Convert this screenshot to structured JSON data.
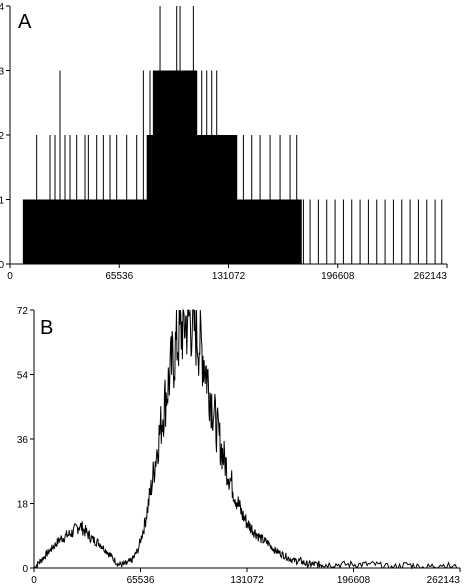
{
  "chart_data": [
    {
      "panel": "A",
      "type": "bar",
      "xlim": [
        0,
        262143
      ],
      "ylim": [
        0,
        4
      ],
      "x_ticks": [
        "0",
        "65536",
        "131072",
        "196608",
        "262143"
      ],
      "y_ticks": [
        "0",
        "1",
        "2",
        "3",
        "4"
      ],
      "series": [
        {
          "x": [
            8000,
            16000,
            24000,
            27000,
            30000,
            33000,
            36000,
            40000,
            45000,
            47000,
            52000,
            56000,
            60000,
            64000,
            70000,
            76000,
            80000,
            84000,
            86000,
            88000,
            90000,
            92000,
            94000,
            96000,
            98000,
            100000,
            101000,
            102000,
            104000,
            106000,
            108000,
            110000,
            112000,
            115000,
            118000,
            121000,
            124000,
            127000,
            130000,
            133000,
            136000,
            140000,
            145000,
            150000,
            156000,
            162000,
            168000,
            172000,
            176000,
            180000,
            185000,
            190000,
            195000,
            200000,
            205000,
            210000,
            215000,
            220000,
            225000,
            230000,
            235000,
            240000,
            245000,
            250000,
            255000,
            259000
          ],
          "values": [
            1,
            2,
            2,
            2,
            3,
            2,
            2,
            2,
            2,
            2,
            2,
            2,
            2,
            2,
            2,
            2,
            3,
            3,
            3,
            3,
            4,
            3,
            3,
            3,
            3,
            4,
            3,
            4,
            3,
            3,
            3,
            4,
            3,
            3,
            3,
            3,
            3,
            2,
            2,
            2,
            2,
            2,
            2,
            2,
            2,
            2,
            2,
            2,
            1,
            1,
            1,
            1,
            1,
            1,
            1,
            1,
            1,
            1,
            1,
            1,
            1,
            1,
            1,
            1,
            1,
            1
          ]
        }
      ]
    },
    {
      "panel": "B",
      "type": "line",
      "xlim": [
        0,
        262143
      ],
      "ylim": [
        0,
        72
      ],
      "x_ticks": [
        "0",
        "65536",
        "131072",
        "196608",
        "262143"
      ],
      "y_ticks": [
        "0",
        "18",
        "36",
        "54",
        "72"
      ],
      "series": [
        {
          "x": [
            0,
            4000,
            8000,
            12000,
            16000,
            20000,
            24000,
            28000,
            32000,
            36000,
            40000,
            44000,
            48000,
            52000,
            56000,
            60000,
            64000,
            68000,
            72000,
            76000,
            80000,
            84000,
            88000,
            92000,
            96000,
            100000,
            104000,
            108000,
            112000,
            116000,
            120000,
            124000,
            128000,
            132000,
            136000,
            140000,
            144000,
            148000,
            152000,
            156000,
            160000,
            164000,
            168000,
            172000,
            176000,
            180000,
            190000,
            200000,
            210000,
            220000,
            230000,
            240000,
            250000,
            262143
          ],
          "values": [
            0,
            2,
            4,
            6,
            8,
            9,
            10,
            12,
            10,
            8,
            7,
            5,
            3,
            1,
            1,
            2,
            5,
            12,
            22,
            34,
            45,
            55,
            63,
            68,
            70,
            66,
            60,
            50,
            40,
            32,
            26,
            20,
            15,
            12,
            10,
            8,
            7,
            5,
            4,
            3,
            2,
            2,
            1,
            1,
            1,
            1,
            1,
            1,
            1,
            0,
            1,
            0,
            1,
            0
          ]
        }
      ]
    }
  ]
}
